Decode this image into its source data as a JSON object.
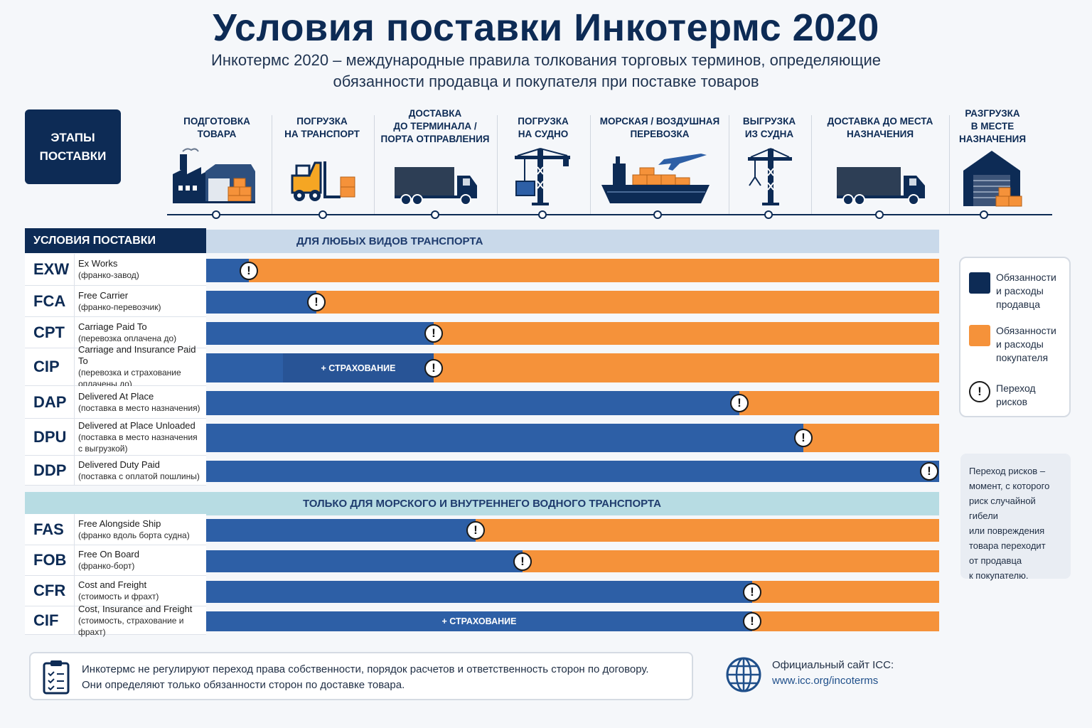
{
  "title": "Условия поставки Инкотермс 2020",
  "subtitle_line1": "Инкотермс 2020 – международные правила толкования торговых терминов, определяющие",
  "subtitle_line2": "обязанности продавца и покупателя при поставке товаров",
  "stages_box": {
    "line1": "ЭТАПЫ",
    "line2": "ПОСТАВКИ"
  },
  "stages": [
    {
      "lines": [
        "ПОДГОТОВКА",
        "ТОВАРА"
      ],
      "icon": "factory-icon"
    },
    {
      "lines": [
        "ПОГРУЗКА",
        "НА ТРАНСПОРТ"
      ],
      "icon": "forklift-icon"
    },
    {
      "lines": [
        "ДОСТАВКА",
        "ДО ТЕРМИНАЛА /",
        "ПОРТА ОТПРАВЛЕНИЯ"
      ],
      "icon": "truck-icon"
    },
    {
      "lines": [
        "ПОГРУЗКА",
        "НА СУДНО"
      ],
      "icon": "crane-container-icon"
    },
    {
      "lines": [
        "МОРСКАЯ / ВОЗДУШНАЯ",
        "ПЕРЕВОЗКА"
      ],
      "icon": "ship-plane-icon"
    },
    {
      "lines": [
        "ВЫГРУЗКА",
        "ИЗ СУДНА"
      ],
      "icon": "crane-icon"
    },
    {
      "lines": [
        "ДОСТАВКА ДО МЕСТА",
        "НАЗНАЧЕНИЯ"
      ],
      "icon": "truck-icon"
    },
    {
      "lines": [
        "РАЗГРУЗКА",
        "В МЕСТЕ",
        "НАЗНАЧЕНИЯ"
      ],
      "icon": "warehouse-icon"
    }
  ],
  "terms_header": "УСЛОВИЯ ПОСТАВКИ",
  "band_any": "ДЛЯ ЛЮБЫХ ВИДОВ ТРАНСПОРТА",
  "band_sea": "ТОЛЬКО ДЛЯ МОРСКОГО И ВНУТРЕННЕГО ВОДНОГО ТРАНСПОРТА",
  "insurance_label": "+ СТРАХОВАНИЕ",
  "risk_symbol": "!",
  "terms": [
    {
      "code": "EXW",
      "en": "Ex Works",
      "ru": [
        "(франко-завод)"
      ],
      "seller_fraction": 0.058,
      "insurance": false
    },
    {
      "code": "FCA",
      "en": "Free Carrier",
      "ru": [
        "(франко-перевозчик)"
      ],
      "seller_fraction": 0.15,
      "insurance": false
    },
    {
      "code": "CPT",
      "en": "Carriage Paid To",
      "ru": [
        "(перевозка оплачена до)"
      ],
      "seller_fraction": 0.31,
      "insurance": false
    },
    {
      "code": "CIP",
      "en": "Carriage and Insurance Paid To",
      "ru": [
        "(перевозка и страхование",
        "оплачены до)"
      ],
      "seller_fraction": 0.31,
      "insurance": true
    },
    {
      "code": "DAP",
      "en": "Delivered At Place",
      "ru": [
        "(поставка в место назначения)"
      ],
      "seller_fraction": 0.727,
      "insurance": false
    },
    {
      "code": "DPU",
      "en": "Delivered at Place Unloaded",
      "ru": [
        "(поставка в место назначения",
        "с выгрузкой)"
      ],
      "seller_fraction": 0.815,
      "insurance": false
    },
    {
      "code": "DDP",
      "en": "Delivered Duty Paid",
      "ru": [
        "(поставка с оплатой пошлины)"
      ],
      "seller_fraction": 1.0,
      "insurance": false
    },
    {
      "code": "FAS",
      "en": "Free Alongside Ship",
      "ru": [
        "(франко вдоль борта судна)"
      ],
      "seller_fraction": 0.368,
      "insurance": false
    },
    {
      "code": "FOB",
      "en": "Free On Board",
      "ru": [
        "(франко-борт)"
      ],
      "seller_fraction": 0.432,
      "insurance": false
    },
    {
      "code": "CFR",
      "en": "Cost and Freight",
      "ru": [
        "(стоимость и фрахт)"
      ],
      "seller_fraction": 0.745,
      "insurance": false
    },
    {
      "code": "CIF",
      "en": "Cost, Insurance and Freight",
      "ru": [
        "(стоимость, страхование и фрахт)"
      ],
      "seller_fraction": 0.745,
      "insurance": true
    }
  ],
  "legend": {
    "seller": [
      "Обязанности",
      "и расходы",
      "продавца"
    ],
    "buyer": [
      "Обязанности",
      "и расходы",
      "покупателя"
    ],
    "risk": [
      "Переход",
      "рисков"
    ],
    "seller_color": "#0d2b55",
    "buyer_color": "#f5923a"
  },
  "risk_note": [
    "Переход рисков –",
    "момент, с которого",
    "риск случайной гибели",
    "или повреждения",
    "товара переходит",
    "от продавца",
    "к покупателю."
  ],
  "footer_note": [
    "Инкотермс не регулируют переход права собственности, порядок расчетов и ответственность сторон по договору.",
    "Они определяют только обязанности сторон по доставке товара."
  ],
  "icc_label": "Официальный сайт ICC:",
  "icc_url": "www.icc.org/incoterms"
}
